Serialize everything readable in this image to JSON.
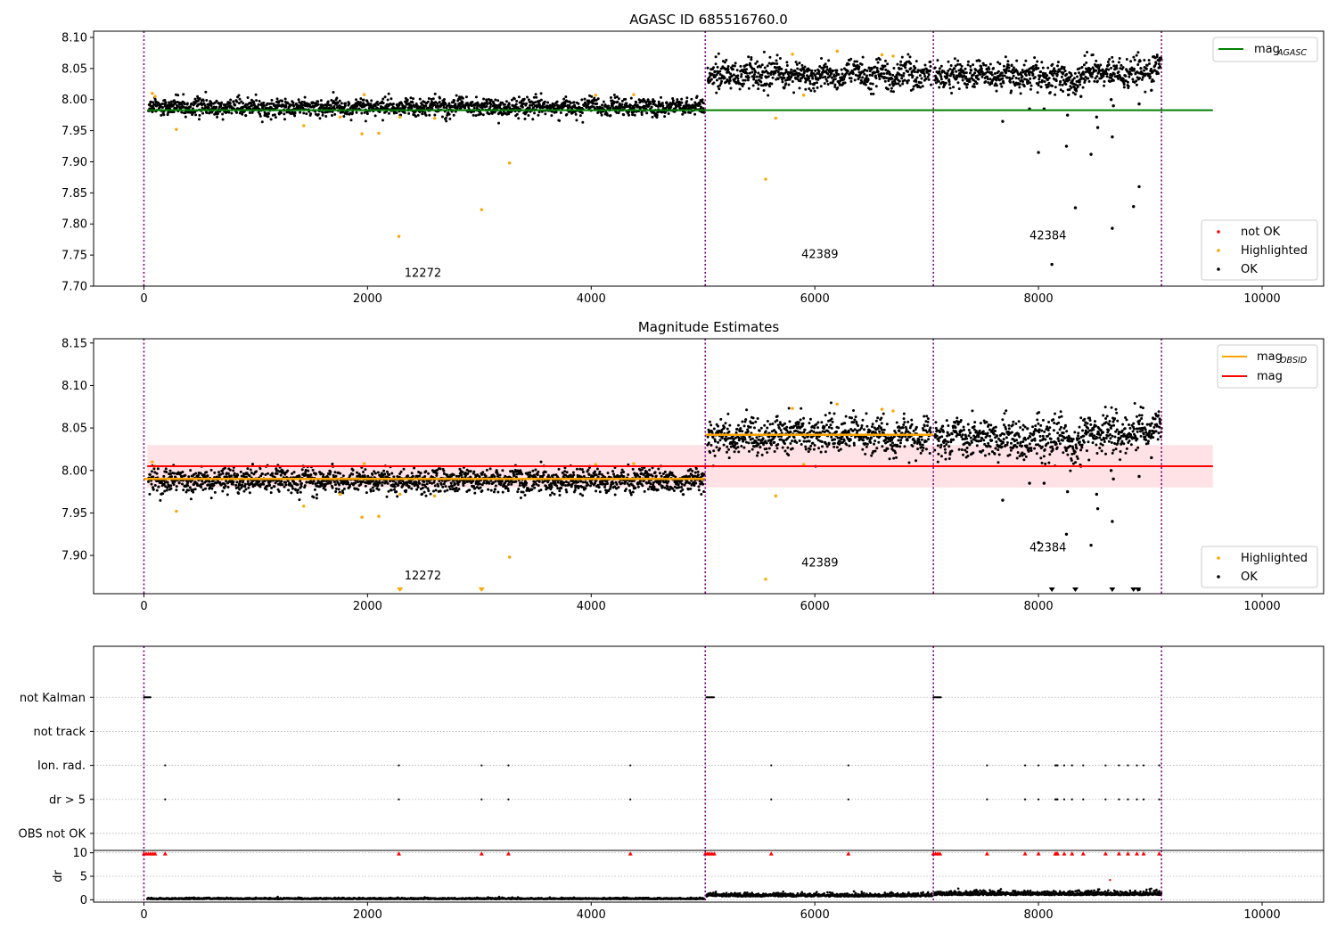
{
  "chart_data": [
    {
      "id": "p1",
      "type": "scatter",
      "title": "AGASC ID 685516760.0",
      "xlabel": "",
      "ylabel": "",
      "xlim": [
        -450,
        10550
      ],
      "ylim": [
        7.7,
        8.11
      ],
      "xticks": [
        0,
        2000,
        4000,
        6000,
        8000,
        10000
      ],
      "yticks": [
        7.7,
        7.75,
        7.8,
        7.85,
        7.9,
        7.95,
        8.0,
        8.05,
        8.1
      ],
      "ytick_decimals": 2,
      "segment_boundaries": [
        0,
        5020,
        7060,
        9100
      ],
      "segments": [
        {
          "x0": 40,
          "x1": 5010,
          "base": 7.988,
          "spread": 0.007,
          "density": 0.35
        },
        {
          "x0": 5040,
          "x1": 7040,
          "base": 8.04,
          "spread": 0.011,
          "density": 0.35
        },
        {
          "x0": 7070,
          "x1": 9100,
          "base": 8.04,
          "spread": 0.011,
          "density": 0.35,
          "trend": [
            [
              7070,
              8.04
            ],
            [
              8200,
              8.036
            ],
            [
              8300,
              8.03
            ],
            [
              8500,
              8.048
            ],
            [
              8800,
              8.04
            ],
            [
              9100,
              8.058
            ]
          ]
        }
      ],
      "obsids": [
        {
          "label": "12272",
          "x": 2330,
          "y": 7.715
        },
        {
          "label": "42389",
          "x": 5880,
          "y": 7.745
        },
        {
          "label": "42384",
          "x": 7920,
          "y": 7.775
        }
      ],
      "highlighted_points": [
        [
          75,
          8.01
        ],
        [
          100,
          8.005
        ],
        [
          290,
          7.952
        ],
        [
          1430,
          7.958
        ],
        [
          1755,
          7.972
        ],
        [
          1950,
          7.945
        ],
        [
          1970,
          8.008
        ],
        [
          2100,
          7.946
        ],
        [
          2280,
          7.78
        ],
        [
          2290,
          7.972
        ],
        [
          2600,
          7.97
        ],
        [
          3020,
          7.823
        ],
        [
          3270,
          7.898
        ],
        [
          4040,
          8.007
        ],
        [
          4380,
          8.008
        ],
        [
          5560,
          7.872
        ],
        [
          5650,
          7.97
        ],
        [
          5800,
          8.073
        ],
        [
          5900,
          8.007
        ],
        [
          6200,
          8.078
        ],
        [
          6600,
          8.072
        ],
        [
          6700,
          8.07
        ]
      ],
      "outlier_points": [
        [
          7680,
          7.965
        ],
        [
          7920,
          7.985
        ],
        [
          8000,
          7.915
        ],
        [
          8050,
          7.985
        ],
        [
          8120,
          7.735
        ],
        [
          8250,
          7.925
        ],
        [
          8260,
          7.975
        ],
        [
          8330,
          7.826
        ],
        [
          8380,
          8.005
        ],
        [
          8470,
          7.912
        ],
        [
          8520,
          7.972
        ],
        [
          8530,
          7.955
        ],
        [
          8650,
          8.0
        ],
        [
          8660,
          7.94
        ],
        [
          8660,
          7.793
        ],
        [
          8670,
          7.99
        ],
        [
          8850,
          7.828
        ],
        [
          8900,
          7.86
        ],
        [
          8900,
          7.993
        ],
        [
          9010,
          8.015
        ]
      ],
      "hlines": [
        {
          "name": "agasc",
          "y": 7.983,
          "x0": 30,
          "x1": 9560,
          "color": "#008000"
        }
      ],
      "legends": [
        {
          "id": "agasc",
          "position": "top-right",
          "items": [
            {
              "label": "mag",
              "sub": "AGASC",
              "kind": "line",
              "color": "#008000"
            }
          ]
        },
        {
          "id": "status",
          "position": "bottom-right",
          "items": [
            {
              "label": "not OK",
              "kind": "dot",
              "color": "#ff0000"
            },
            {
              "label": "Highlighted",
              "kind": "dot",
              "color": "#ffa500"
            },
            {
              "label": "OK",
              "kind": "dot",
              "color": "#000000"
            }
          ]
        }
      ]
    },
    {
      "id": "p2",
      "type": "scatter",
      "title": "Magnitude Estimates",
      "xlabel": "",
      "ylabel": "",
      "xlim": [
        -450,
        10550
      ],
      "ylim": [
        7.855,
        8.155
      ],
      "xticks": [
        0,
        2000,
        4000,
        6000,
        8000,
        10000
      ],
      "yticks": [
        7.9,
        7.95,
        8.0,
        8.05,
        8.1,
        8.15
      ],
      "ytick_decimals": 2,
      "segment_boundaries": [
        0,
        5020,
        7060,
        9100
      ],
      "obsids": [
        {
          "label": "12272",
          "x": 2330,
          "y": 7.872
        },
        {
          "label": "42389",
          "x": 5880,
          "y": 7.887
        },
        {
          "label": "42384",
          "x": 7920,
          "y": 7.905
        }
      ],
      "obsid_mags": [
        {
          "x0": 0,
          "x1": 5020,
          "y": 7.99
        },
        {
          "x0": 5020,
          "x1": 7060,
          "y": 8.042
        }
      ],
      "mag_line": {
        "y": 8.005,
        "x0": 30,
        "x1": 9560,
        "band": [
          7.98,
          8.03
        ]
      },
      "clipped_markers": [
        2290,
        3020,
        8120,
        8330,
        8660,
        8850,
        8890
      ],
      "legends": [
        {
          "id": "mags",
          "position": "top-right",
          "items": [
            {
              "label": "mag",
              "sub": "OBSID",
              "kind": "line",
              "color": "#ffa500"
            },
            {
              "label": "mag",
              "kind": "line",
              "color": "#ff0000"
            }
          ]
        },
        {
          "id": "status",
          "position": "bottom-right",
          "items": [
            {
              "label": "Highlighted",
              "kind": "dot",
              "color": "#ffa500"
            },
            {
              "label": "OK",
              "kind": "dot",
              "color": "#000000"
            }
          ]
        }
      ]
    },
    {
      "id": "p3",
      "type": "scatter",
      "title": "",
      "xlabel": "",
      "ylabel": "",
      "xlim": [
        -450,
        10550
      ],
      "ylim": [
        -0.5,
        5.5
      ],
      "categories": [
        "not Kalman",
        "not track",
        "Ion. rad.",
        "dr > 5",
        "OBS not OK"
      ],
      "category_y": [
        4,
        3,
        2,
        1,
        0
      ],
      "flags": {
        "not Kalman": [
          [
            0,
            60
          ],
          [
            5030,
            5100
          ],
          [
            7060,
            7130
          ]
        ],
        "not track": [],
        "Ion. rad.": [
          190,
          2280,
          3020,
          3260,
          4350,
          5610,
          6300,
          7540,
          7880,
          8000,
          8150,
          8160,
          8170,
          8230,
          8300,
          8400,
          8600,
          8720,
          8800,
          8880,
          8940,
          9080
        ],
        "dr > 5": [
          190,
          2280,
          3020,
          3260,
          4350,
          5610,
          6300,
          7540,
          7880,
          8000,
          8150,
          8160,
          8170,
          8230,
          8300,
          8400,
          8600,
          8720,
          8800,
          8880,
          8940,
          9080
        ],
        "OBS not OK": []
      },
      "segment_boundaries": [
        0,
        5020,
        7060,
        9100
      ]
    },
    {
      "id": "p4",
      "type": "scatter",
      "title": "",
      "xlabel": "",
      "ylabel": "dr",
      "xlim": [
        -450,
        10550
      ],
      "ylim": [
        -0.5,
        10.5
      ],
      "xticks": [
        0,
        2000,
        4000,
        6000,
        8000,
        10000
      ],
      "yticks": [
        0,
        5,
        10
      ],
      "ytick_decimals": 0,
      "segment_boundaries": [
        0,
        5020,
        7060,
        9100
      ],
      "dr_segments": [
        {
          "x0": 30,
          "x1": 5010,
          "mean": 0.15,
          "spread": 0.12
        },
        {
          "x0": 5030,
          "x1": 7050,
          "mean": 0.7,
          "spread": 0.35
        },
        {
          "x0": 7070,
          "x1": 9100,
          "mean": 1.0,
          "spread": 0.45
        }
      ],
      "clipped_dr_x": [
        0,
        20,
        40,
        60,
        80,
        100,
        190,
        2280,
        3020,
        3260,
        4350,
        5020,
        5040,
        5060,
        5080,
        5100,
        5610,
        6300,
        7060,
        7080,
        7100,
        7120,
        7540,
        7880,
        8000,
        8150,
        8160,
        8170,
        8230,
        8300,
        8400,
        8600,
        8720,
        8800,
        8880,
        8940,
        9080
      ],
      "red_points": [
        [
          8640,
          4.2
        ]
      ]
    }
  ]
}
